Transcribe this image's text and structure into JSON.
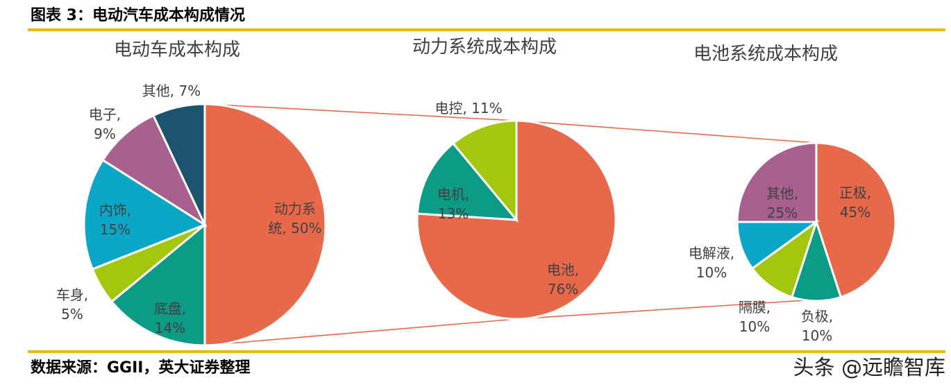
{
  "header": {
    "title": "图表 3：电动汽车成本构成情况"
  },
  "footer": {
    "source": "数据来源：GGII，英大证券整理",
    "watermark": "头条 @远瞻智库"
  },
  "colors": {
    "rule": "#f5b800",
    "connector": "#e8694a"
  },
  "chart_data": [
    {
      "type": "pie",
      "title": "电动车成本构成",
      "slices": [
        {
          "label": "动力系统",
          "value": 50,
          "label_lines": [
            "动力系",
            "统, 50%"
          ],
          "color": "#e8694a"
        },
        {
          "label": "底盘",
          "value": 14,
          "label_lines": [
            "底盘,",
            "14%"
          ],
          "color": "#0c9b86"
        },
        {
          "label": "车身",
          "value": 5,
          "label_lines": [
            "车身,",
            "5%"
          ],
          "color": "#a4c60f"
        },
        {
          "label": "内饰",
          "value": 15,
          "label_lines": [
            "内饰,",
            "15%"
          ],
          "color": "#0aa7c6"
        },
        {
          "label": "电子",
          "value": 9,
          "label_lines": [
            "电子,",
            "9%"
          ],
          "color": "#a8608e"
        },
        {
          "label": "其他",
          "value": 7,
          "label_lines": [
            "其他, 7%"
          ],
          "color": "#1c5470"
        }
      ]
    },
    {
      "type": "pie",
      "title": "动力系统成本构成",
      "slices": [
        {
          "label": "电池",
          "value": 76,
          "label_lines": [
            "电池,",
            "76%"
          ],
          "color": "#e8694a"
        },
        {
          "label": "电机",
          "value": 13,
          "label_lines": [
            "电机,",
            "13%"
          ],
          "color": "#0c9b86"
        },
        {
          "label": "电控",
          "value": 11,
          "label_lines": [
            "电控, 11%"
          ],
          "color": "#a4c60f"
        }
      ]
    },
    {
      "type": "pie",
      "title": "电池系统成本构成",
      "slices": [
        {
          "label": "正极",
          "value": 45,
          "label_lines": [
            "正极,",
            "45%"
          ],
          "color": "#e8694a"
        },
        {
          "label": "负极",
          "value": 10,
          "label_lines": [
            "负极,",
            "10%"
          ],
          "color": "#0c9b86"
        },
        {
          "label": "隔膜",
          "value": 10,
          "label_lines": [
            "隔膜,",
            "10%"
          ],
          "color": "#a4c60f"
        },
        {
          "label": "电解液",
          "value": 10,
          "label_lines": [
            "电解液,",
            "10%"
          ],
          "color": "#0aa7c6"
        },
        {
          "label": "其他",
          "value": 25,
          "label_lines": [
            "其他,",
            "25%"
          ],
          "color": "#a8608e"
        }
      ]
    }
  ]
}
